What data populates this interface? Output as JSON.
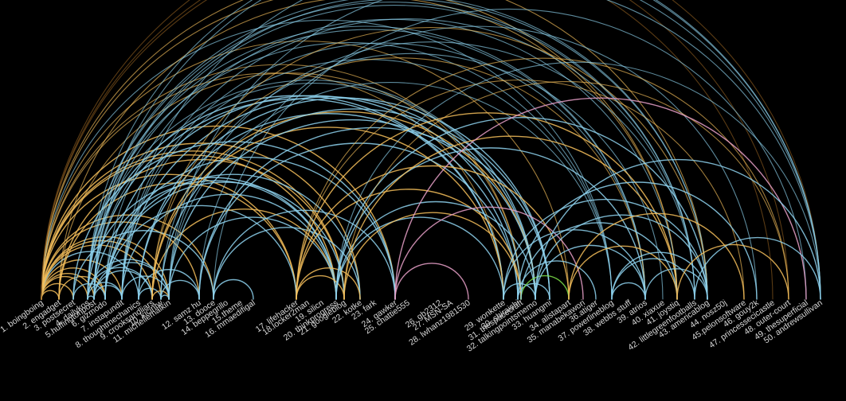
{
  "colors": {
    "background": "#000000",
    "label": "#d8d8d8",
    "blue": "#8ed2ee",
    "orange": "#f4be5a",
    "pink": "#e8a0c8",
    "green": "#7de04a",
    "faint_orange": "#8a5a1e"
  },
  "nodes": [
    "1. boingboing",
    "2. engadget",
    "3. postsecret",
    "4. dailykos",
    "5.huffingtonpost",
    "6. gizmodo",
    "7. instapundit",
    "8. thoughtmechanics",
    "9. crooksandliars",
    "10. kicintw",
    "11. michellemalkin",
    "12. samz hu",
    "13. dooce",
    "14. beppegrillo",
    "15.theme",
    "16. mmaedifigal",
    "17. lifehacker",
    "18.locker2man",
    "19. silicn",
    "20. thinkprogress",
    "21. googleblog",
    "22. kotke",
    "23. fark",
    "24. gawker",
    "25. chattie555",
    "26. gb2312",
    "27. MSN-SA",
    "28. lwhanz1981530",
    "29. wonkette",
    "30. shiraishi",
    "31. thespacecraft",
    "32. talkingpointsmemo",
    "33. huangmi",
    "34. alistapart",
    "35. manabekawori",
    "36.atiger",
    "37. powerlineblog",
    "38. webbs stuff",
    "39. atrios",
    "40. xiaxue",
    "41. joystiq",
    "42. littlegreenfootballs",
    "43. americablog",
    "44. nosz50j",
    "45.pelonsoftware",
    "46. gouy2k",
    "47. princessecicastle",
    "48. outer-court",
    "49. thesuperficial",
    "50. andrewsullivan"
  ],
  "edges": [
    [
      1,
      2,
      "orange"
    ],
    [
      1,
      3,
      "orange"
    ],
    [
      1,
      4,
      "orange"
    ],
    [
      1,
      5,
      "orange"
    ],
    [
      1,
      6,
      "orange"
    ],
    [
      1,
      7,
      "orange"
    ],
    [
      1,
      8,
      "blue"
    ],
    [
      1,
      9,
      "orange"
    ],
    [
      1,
      10,
      "orange"
    ],
    [
      1,
      11,
      "orange"
    ],
    [
      1,
      12,
      "orange"
    ],
    [
      1,
      13,
      "orange"
    ],
    [
      1,
      17,
      "orange"
    ],
    [
      1,
      20,
      "orange"
    ],
    [
      1,
      21,
      "orange"
    ],
    [
      1,
      22,
      "orange"
    ],
    [
      1,
      24,
      "orange"
    ],
    [
      1,
      29,
      "orange"
    ],
    [
      1,
      31,
      "orange"
    ],
    [
      1,
      34,
      "orange"
    ],
    [
      1,
      37,
      "blue"
    ],
    [
      1,
      41,
      "orange"
    ],
    [
      1,
      43,
      "orange"
    ],
    [
      1,
      47,
      "faint_orange"
    ],
    [
      1,
      48,
      "faint_orange"
    ],
    [
      1,
      50,
      "faint_orange"
    ],
    [
      2,
      6,
      "orange"
    ],
    [
      2,
      17,
      "orange"
    ],
    [
      2,
      21,
      "orange"
    ],
    [
      2,
      41,
      "orange"
    ],
    [
      2,
      31,
      "orange"
    ],
    [
      3,
      6,
      "blue"
    ],
    [
      3,
      13,
      "blue"
    ],
    [
      3,
      24,
      "blue"
    ],
    [
      4,
      5,
      "blue"
    ],
    [
      4,
      7,
      "blue"
    ],
    [
      4,
      9,
      "blue"
    ],
    [
      4,
      11,
      "blue"
    ],
    [
      4,
      20,
      "blue"
    ],
    [
      4,
      29,
      "blue"
    ],
    [
      4,
      32,
      "blue"
    ],
    [
      4,
      37,
      "blue"
    ],
    [
      4,
      39,
      "blue"
    ],
    [
      4,
      42,
      "blue"
    ],
    [
      4,
      43,
      "blue"
    ],
    [
      4,
      50,
      "blue"
    ],
    [
      5,
      7,
      "blue"
    ],
    [
      5,
      9,
      "blue"
    ],
    [
      5,
      11,
      "blue"
    ],
    [
      5,
      20,
      "blue"
    ],
    [
      5,
      29,
      "blue"
    ],
    [
      5,
      32,
      "blue"
    ],
    [
      5,
      39,
      "blue"
    ],
    [
      5,
      42,
      "blue"
    ],
    [
      5,
      43,
      "blue"
    ],
    [
      5,
      50,
      "blue"
    ],
    [
      6,
      17,
      "blue"
    ],
    [
      6,
      21,
      "blue"
    ],
    [
      6,
      22,
      "blue"
    ],
    [
      6,
      24,
      "blue"
    ],
    [
      6,
      31,
      "blue"
    ],
    [
      6,
      41,
      "blue"
    ],
    [
      7,
      11,
      "blue"
    ],
    [
      7,
      20,
      "blue"
    ],
    [
      7,
      32,
      "blue"
    ],
    [
      7,
      37,
      "blue"
    ],
    [
      7,
      39,
      "blue"
    ],
    [
      7,
      42,
      "blue"
    ],
    [
      7,
      50,
      "blue"
    ],
    [
      8,
      10,
      "blue"
    ],
    [
      8,
      12,
      "blue"
    ],
    [
      8,
      30,
      "blue"
    ],
    [
      8,
      33,
      "blue"
    ],
    [
      9,
      11,
      "orange"
    ],
    [
      9,
      20,
      "orange"
    ],
    [
      9,
      29,
      "orange"
    ],
    [
      9,
      32,
      "orange"
    ],
    [
      9,
      39,
      "orange"
    ],
    [
      9,
      43,
      "orange"
    ],
    [
      10,
      11,
      "blue"
    ],
    [
      10,
      12,
      "blue"
    ],
    [
      10,
      33,
      "blue"
    ],
    [
      10,
      40,
      "blue"
    ],
    [
      11,
      20,
      "blue"
    ],
    [
      11,
      32,
      "blue"
    ],
    [
      11,
      37,
      "blue"
    ],
    [
      11,
      42,
      "blue"
    ],
    [
      11,
      50,
      "blue"
    ],
    [
      12,
      30,
      "blue"
    ],
    [
      12,
      33,
      "blue"
    ],
    [
      12,
      46,
      "blue"
    ],
    [
      13,
      16,
      "blue"
    ],
    [
      13,
      22,
      "blue"
    ],
    [
      13,
      24,
      "blue"
    ],
    [
      13,
      49,
      "blue"
    ],
    [
      17,
      21,
      "orange"
    ],
    [
      17,
      22,
      "orange"
    ],
    [
      17,
      31,
      "orange"
    ],
    [
      17,
      34,
      "orange"
    ],
    [
      17,
      41,
      "orange"
    ],
    [
      17,
      45,
      "orange"
    ],
    [
      17,
      48,
      "orange"
    ],
    [
      20,
      29,
      "blue"
    ],
    [
      20,
      32,
      "blue"
    ],
    [
      20,
      39,
      "blue"
    ],
    [
      20,
      43,
      "blue"
    ],
    [
      20,
      50,
      "blue"
    ],
    [
      21,
      31,
      "orange"
    ],
    [
      21,
      41,
      "orange"
    ],
    [
      21,
      48,
      "orange"
    ],
    [
      24,
      28,
      "pink"
    ],
    [
      24,
      35,
      "pink"
    ],
    [
      24,
      49,
      "pink"
    ],
    [
      29,
      32,
      "blue"
    ],
    [
      29,
      39,
      "blue"
    ],
    [
      29,
      43,
      "blue"
    ],
    [
      30,
      33,
      "blue"
    ],
    [
      30,
      36,
      "blue"
    ],
    [
      30,
      46,
      "blue"
    ],
    [
      31,
      34,
      "green"
    ],
    [
      31,
      41,
      "blue"
    ],
    [
      32,
      39,
      "blue"
    ],
    [
      32,
      43,
      "blue"
    ],
    [
      32,
      50,
      "blue"
    ],
    [
      34,
      41,
      "orange"
    ],
    [
      34,
      45,
      "orange"
    ],
    [
      37,
      39,
      "blue"
    ],
    [
      37,
      42,
      "blue"
    ],
    [
      37,
      43,
      "blue"
    ],
    [
      39,
      43,
      "blue"
    ],
    [
      41,
      48,
      "orange"
    ],
    [
      42,
      50,
      "blue"
    ]
  ]
}
